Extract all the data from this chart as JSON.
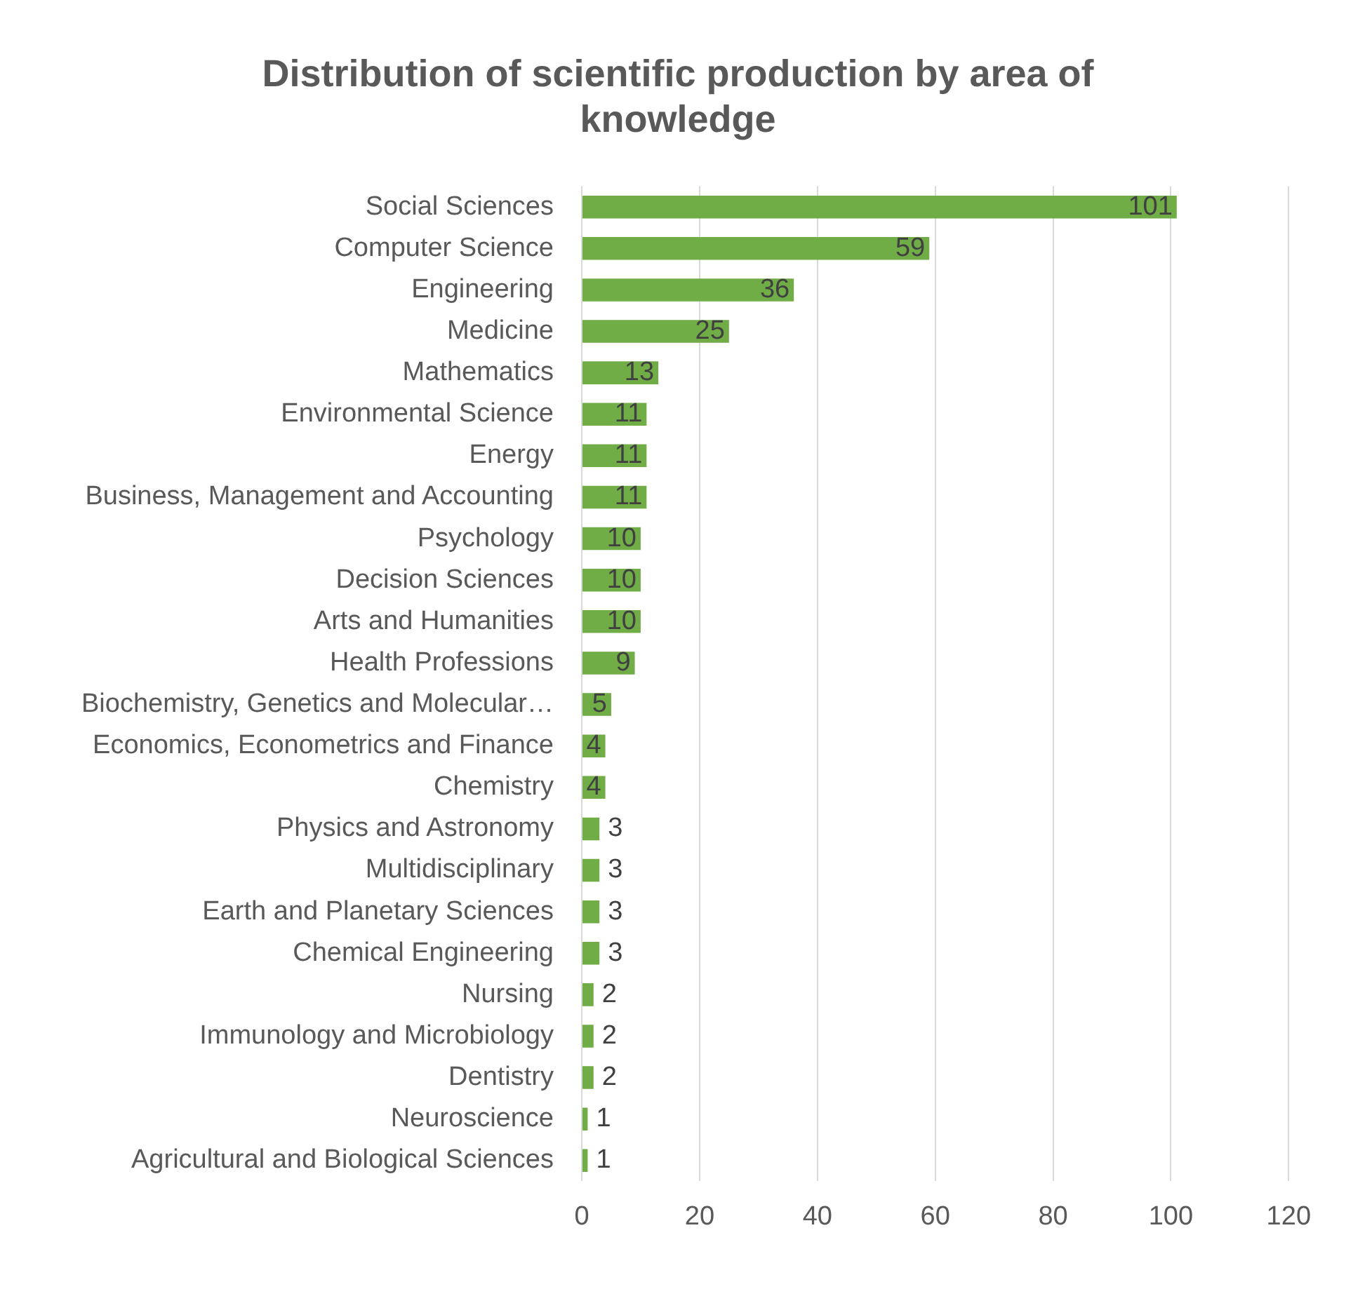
{
  "chart_data": {
    "type": "bar",
    "orientation": "horizontal",
    "title": "Distribution of scientific production by area of knowledge",
    "categories": [
      "Social Sciences",
      "Computer Science",
      "Engineering",
      "Medicine",
      "Mathematics",
      "Environmental Science",
      "Energy",
      "Business, Management and Accounting",
      "Psychology",
      "Decision Sciences",
      "Arts and Humanities",
      "Health Professions",
      "Biochemistry, Genetics and Molecular…",
      "Economics, Econometrics and Finance",
      "Chemistry",
      "Physics and Astronomy",
      "Multidisciplinary",
      "Earth and Planetary Sciences",
      "Chemical Engineering",
      "Nursing",
      "Immunology and Microbiology",
      "Dentistry",
      "Neuroscience",
      "Agricultural and Biological Sciences"
    ],
    "values": [
      101,
      59,
      36,
      25,
      13,
      11,
      11,
      11,
      10,
      10,
      10,
      9,
      5,
      4,
      4,
      3,
      3,
      3,
      3,
      2,
      2,
      2,
      1,
      1
    ],
    "color": "#70ad47",
    "xlim": [
      0,
      120
    ],
    "xticks": [
      0,
      20,
      40,
      60,
      80,
      100,
      120
    ],
    "grid": "x",
    "legend": false,
    "data_labels": true
  }
}
